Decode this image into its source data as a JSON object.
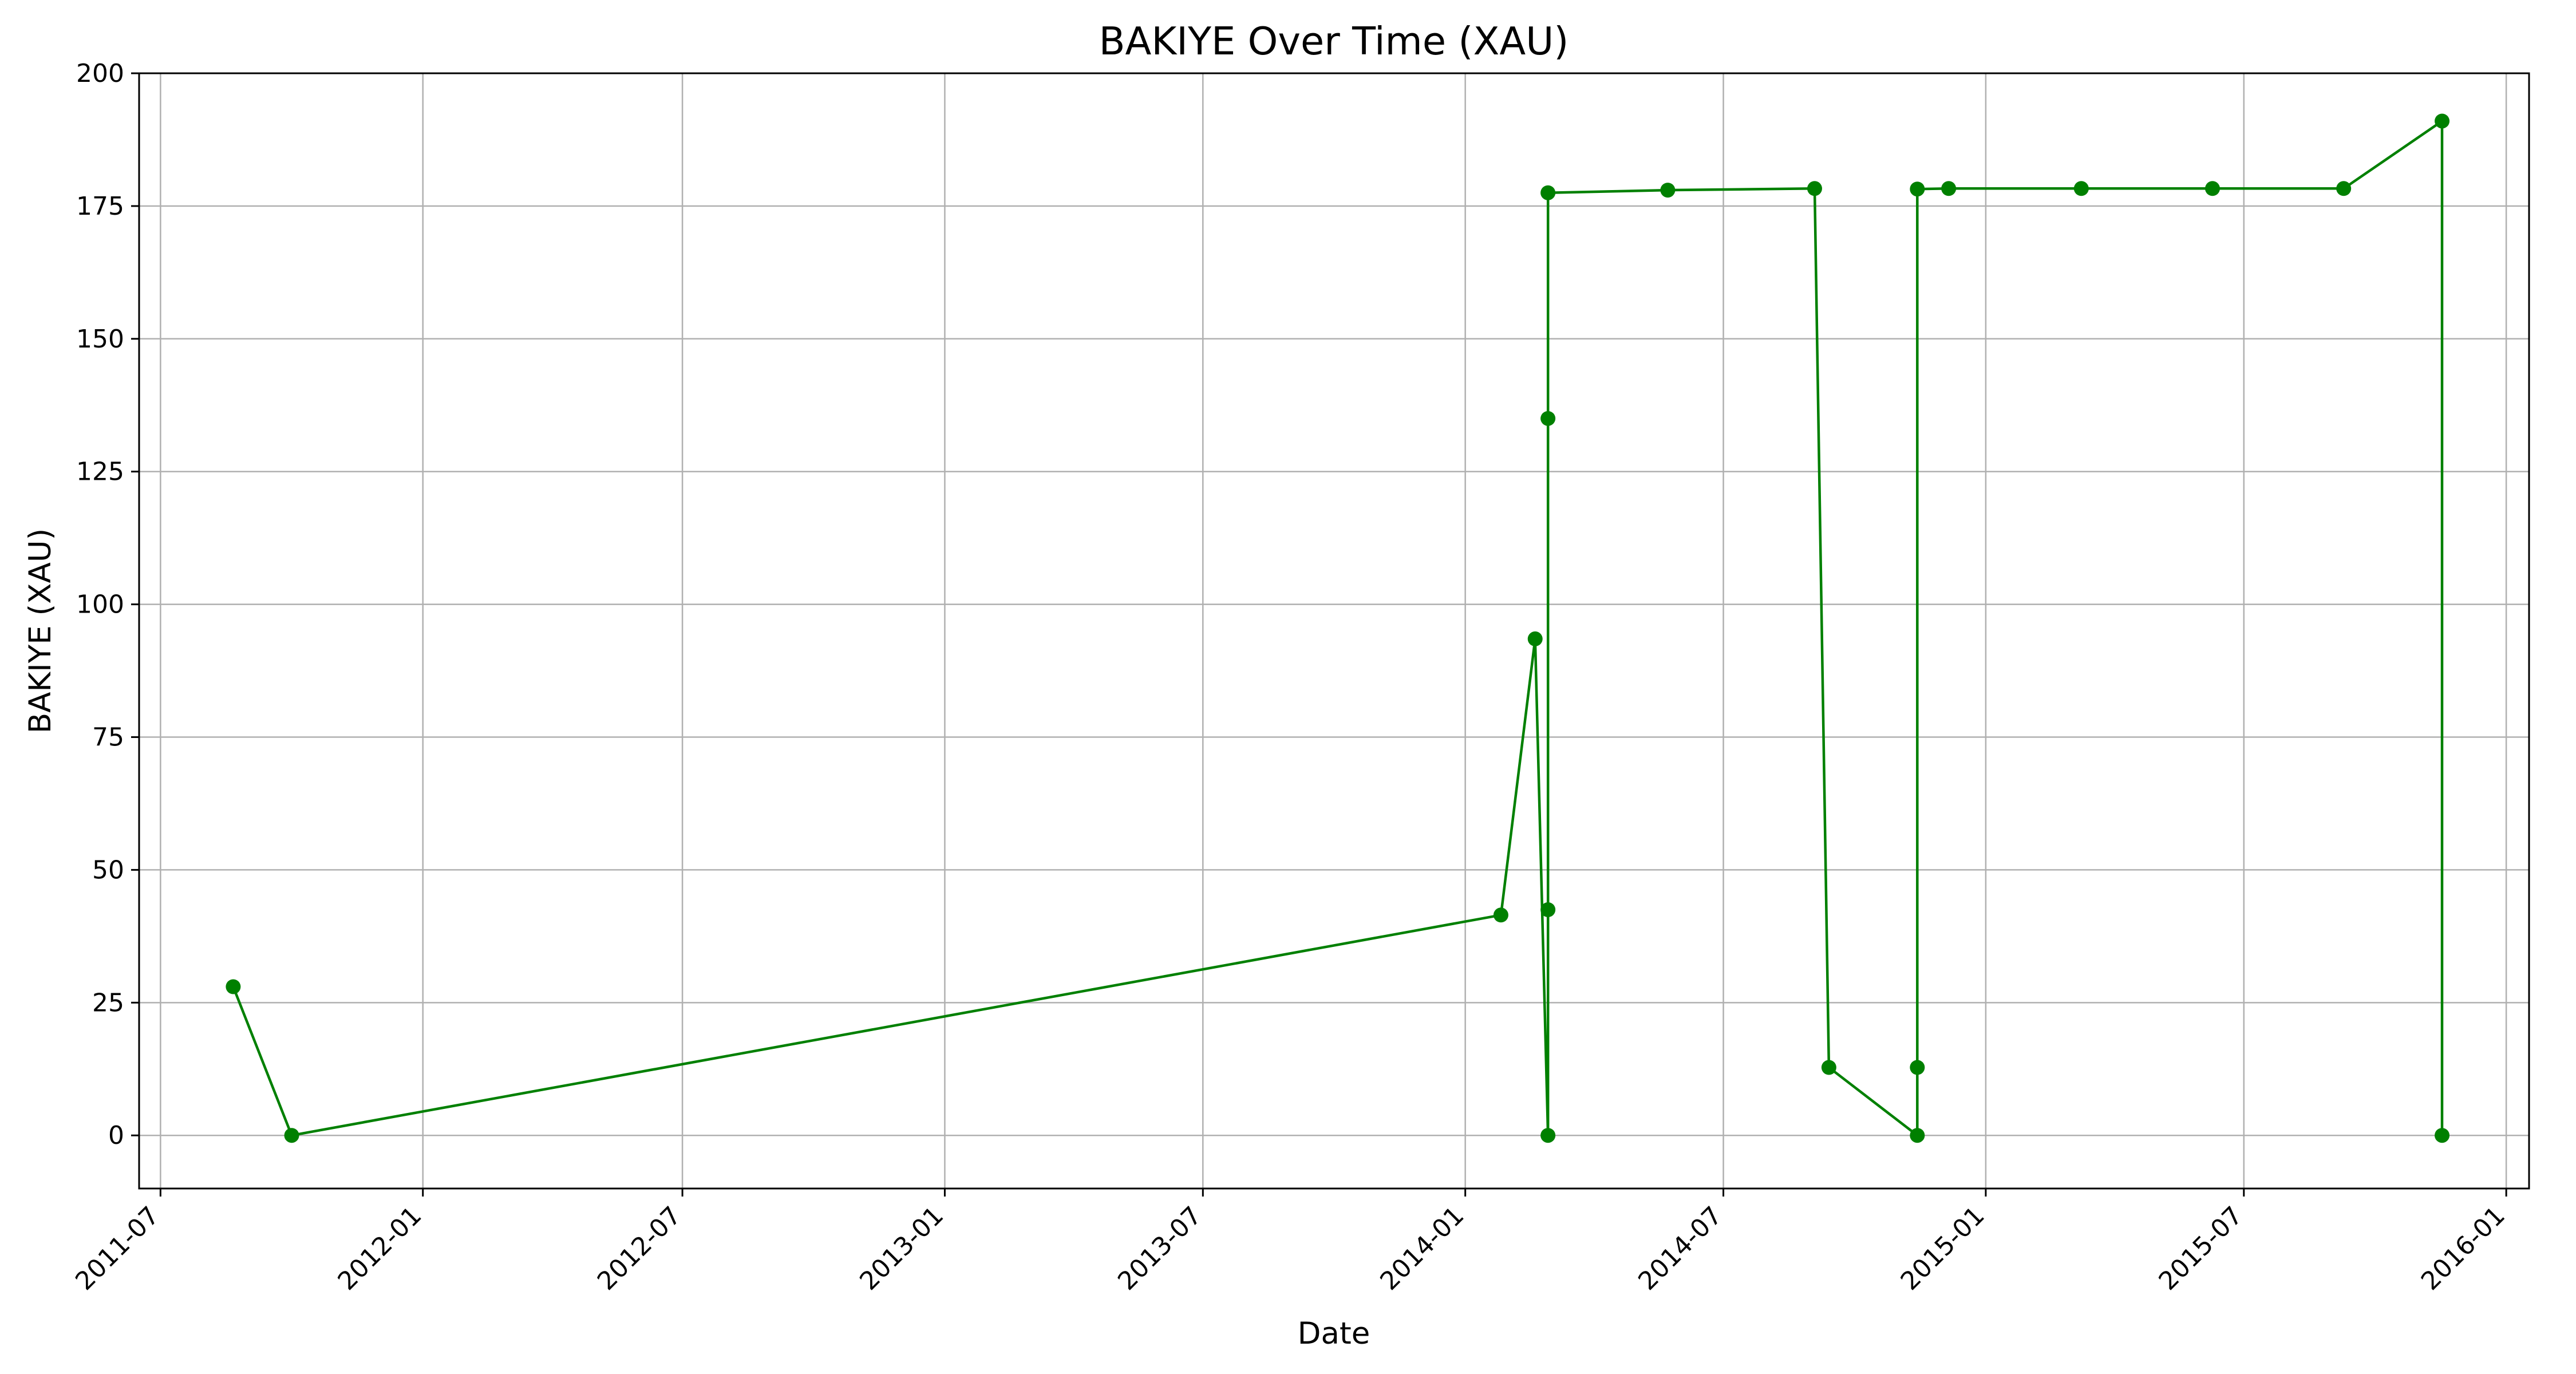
{
  "chart_data": {
    "type": "line",
    "title": "BAKIYE Over Time (XAU)",
    "xlabel": "Date",
    "ylabel": "BAKIYE (XAU)",
    "xlim": [
      "2011-06-16",
      "2016-01-17"
    ],
    "ylim": [
      -10,
      200
    ],
    "grid": true,
    "x_ticks": [
      "2011-07-01",
      "2012-01-01",
      "2012-07-01",
      "2013-01-01",
      "2013-07-01",
      "2014-01-01",
      "2014-07-01",
      "2015-01-01",
      "2015-07-01",
      "2016-01-01"
    ],
    "x_tick_labels": [
      "2011-07",
      "2012-01",
      "2012-07",
      "2013-01",
      "2013-07",
      "2014-01",
      "2014-07",
      "2015-01",
      "2015-07",
      "2016-01"
    ],
    "y_ticks": [
      0,
      25,
      50,
      75,
      100,
      125,
      150,
      175,
      200
    ],
    "y_tick_labels": [
      "0",
      "25",
      "50",
      "75",
      "100",
      "125",
      "150",
      "175",
      "200"
    ],
    "series": [
      {
        "color": "#008000",
        "marker": "circle",
        "x": [
          "2011-08-21",
          "2011-10-01",
          "2014-01-26",
          "2014-02-19",
          "2014-02-28",
          "2014-02-28",
          "2014-02-28",
          "2014-02-28",
          "2014-05-23",
          "2014-09-03",
          "2014-09-13",
          "2014-11-14",
          "2014-11-14",
          "2014-11-14",
          "2014-12-06",
          "2015-03-09",
          "2015-06-09",
          "2015-09-09",
          "2015-11-17",
          "2015-11-17"
        ],
        "y": [
          28,
          0,
          41.5,
          93.5,
          0,
          42.5,
          135,
          177.5,
          178,
          178.3,
          12.8,
          0,
          12.8,
          178.2,
          178.3,
          178.3,
          178.3,
          178.3,
          191,
          0
        ]
      }
    ]
  }
}
